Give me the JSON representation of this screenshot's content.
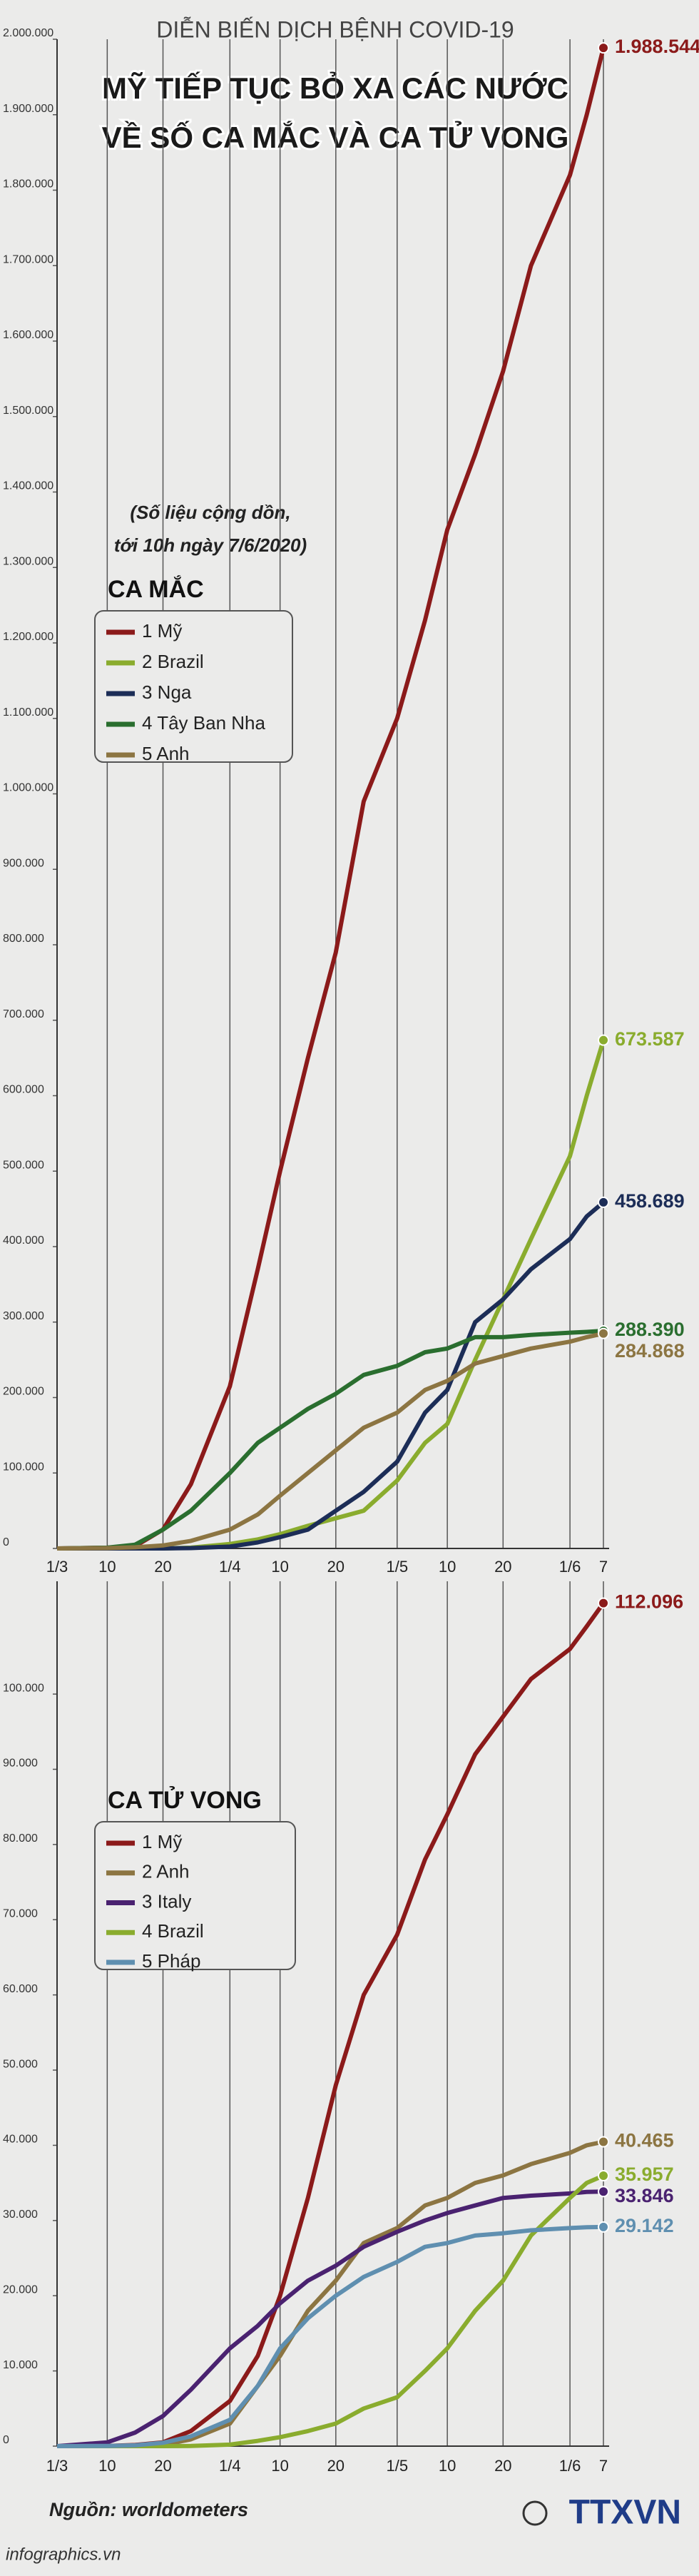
{
  "header": {
    "kicker": "DIỄN BIẾN DỊCH BỆNH COVID-19",
    "title_lines": [
      "MỸ TIẾP TỤC BỎ XA CÁC NƯỚC",
      "VỀ SỐ CA MẮC VÀ CA TỬ VONG"
    ]
  },
  "chart_data": [
    {
      "type": "line",
      "title": "CA MẮC",
      "annotation_lines": [
        "(Số liệu cộng dồn,",
        "tới 10h ngày 7/6/2020)"
      ],
      "x": [
        0,
        9,
        14,
        19,
        24,
        31,
        36,
        40,
        45,
        50,
        55,
        61,
        66,
        70,
        75,
        80,
        85,
        92,
        95,
        98
      ],
      "xlim": [
        0,
        98
      ],
      "xticks": [
        {
          "value": 0,
          "label": "1/3"
        },
        {
          "value": 9,
          "label": "10"
        },
        {
          "value": 19,
          "label": "20"
        },
        {
          "value": 31,
          "label": "1/4"
        },
        {
          "value": 40,
          "label": "10"
        },
        {
          "value": 50,
          "label": "20"
        },
        {
          "value": 61,
          "label": "1/5"
        },
        {
          "value": 70,
          "label": "10"
        },
        {
          "value": 80,
          "label": "20"
        },
        {
          "value": 92,
          "label": "1/6"
        },
        {
          "value": 98,
          "label": "7"
        }
      ],
      "ylim": [
        0,
        2000000
      ],
      "yticks": [
        0,
        {
          "value": 100000,
          "label": "100.000"
        },
        {
          "value": 200000,
          "label": "200.000"
        },
        {
          "value": 300000,
          "label": "300.000"
        },
        {
          "value": 400000,
          "label": "400.000"
        },
        {
          "value": 500000,
          "label": "500.000"
        },
        {
          "value": 600000,
          "label": "600.000"
        },
        {
          "value": 700000,
          "label": "700.000"
        },
        {
          "value": 800000,
          "label": "800.000"
        },
        {
          "value": 900000,
          "label": "900.000"
        },
        {
          "value": 1000000,
          "label": "1.000.000"
        },
        {
          "value": 1100000,
          "label": "1.100.000"
        },
        {
          "value": 1200000,
          "label": "1.200.000"
        },
        {
          "value": 1300000,
          "label": "1.300.000"
        },
        {
          "value": 1400000,
          "label": "1.400.000"
        },
        {
          "value": 1500000,
          "label": "1.500.000"
        },
        {
          "value": 1600000,
          "label": "1.600.000"
        },
        {
          "value": 1700000,
          "label": "1.700.000"
        },
        {
          "value": 1800000,
          "label": "1.800.000"
        },
        {
          "value": 1900000,
          "label": "1.900.000"
        },
        {
          "value": 2000000,
          "label": "2.000.000"
        }
      ],
      "grid": true,
      "series": [
        {
          "name": "1 Mỹ",
          "color": "#8b1a1a",
          "values": [
            0,
            1000,
            3000,
            25000,
            85000,
            215000,
            370000,
            500000,
            650000,
            790000,
            990000,
            1100000,
            1230000,
            1350000,
            1450000,
            1560000,
            1700000,
            1820000,
            1900000,
            1988544
          ],
          "value_labels": [
            null,
            null,
            null,
            null,
            null,
            null,
            null,
            null,
            null,
            null,
            null,
            null,
            null,
            null,
            null,
            null,
            null,
            null,
            null,
            "1.988.544"
          ]
        },
        {
          "name": "2 Brazil",
          "color": "#8aac2e",
          "values": [
            0,
            0,
            0,
            0,
            1000,
            6000,
            12000,
            19000,
            30000,
            40000,
            50000,
            90000,
            140000,
            165000,
            250000,
            330000,
            410000,
            520000,
            600000,
            673587
          ],
          "value_labels": [
            null,
            null,
            null,
            null,
            null,
            null,
            null,
            null,
            null,
            null,
            null,
            null,
            null,
            null,
            null,
            null,
            null,
            null,
            null,
            "673.587"
          ]
        },
        {
          "name": "3 Nga",
          "color": "#1c2d57",
          "values": [
            0,
            0,
            0,
            0,
            500,
            2500,
            8000,
            15000,
            25000,
            50000,
            75000,
            115000,
            180000,
            210000,
            300000,
            330000,
            370000,
            410000,
            440000,
            458689
          ],
          "value_labels": [
            null,
            null,
            null,
            null,
            null,
            null,
            null,
            null,
            null,
            null,
            null,
            null,
            null,
            null,
            null,
            null,
            null,
            null,
            null,
            "458.689"
          ]
        },
        {
          "name": "4 Tây Ban Nha",
          "color": "#2a6e2f",
          "values": [
            0,
            1000,
            5000,
            25000,
            50000,
            100000,
            140000,
            160000,
            185000,
            205000,
            230000,
            242000,
            260000,
            265000,
            280000,
            280000,
            283000,
            286000,
            287000,
            288390
          ],
          "value_labels": [
            null,
            null,
            null,
            null,
            null,
            null,
            null,
            null,
            null,
            null,
            null,
            null,
            null,
            null,
            null,
            null,
            null,
            null,
            null,
            "288.390"
          ]
        },
        {
          "name": "5 Anh",
          "color": "#8c7542",
          "values": [
            0,
            500,
            1500,
            4000,
            10000,
            25000,
            45000,
            70000,
            100000,
            130000,
            160000,
            180000,
            210000,
            222000,
            245000,
            255000,
            265000,
            274000,
            280000,
            284868
          ],
          "value_labels": [
            null,
            null,
            null,
            null,
            null,
            null,
            null,
            null,
            null,
            null,
            null,
            null,
            null,
            null,
            null,
            null,
            null,
            null,
            null,
            "284.868"
          ]
        }
      ]
    },
    {
      "type": "line",
      "title": "CA TỬ VONG",
      "x": [
        0,
        9,
        14,
        19,
        24,
        31,
        36,
        40,
        45,
        50,
        55,
        61,
        66,
        70,
        75,
        80,
        85,
        92,
        95,
        98
      ],
      "xlim": [
        0,
        98
      ],
      "xticks": [
        {
          "value": 0,
          "label": "1/3"
        },
        {
          "value": 9,
          "label": "10"
        },
        {
          "value": 19,
          "label": "20"
        },
        {
          "value": 31,
          "label": "1/4"
        },
        {
          "value": 40,
          "label": "10"
        },
        {
          "value": 50,
          "label": "20"
        },
        {
          "value": 61,
          "label": "1/5"
        },
        {
          "value": 70,
          "label": "10"
        },
        {
          "value": 80,
          "label": "20"
        },
        {
          "value": 92,
          "label": "1/6"
        },
        {
          "value": 98,
          "label": "7"
        }
      ],
      "ylim": [
        0,
        115000
      ],
      "yticks": [
        0,
        {
          "value": 10000,
          "label": "10.000"
        },
        {
          "value": 20000,
          "label": "20.000"
        },
        {
          "value": 30000,
          "label": "30.000"
        },
        {
          "value": 40000,
          "label": "40.000"
        },
        {
          "value": 50000,
          "label": "50.000"
        },
        {
          "value": 60000,
          "label": "60.000"
        },
        {
          "value": 70000,
          "label": "70.000"
        },
        {
          "value": 80000,
          "label": "80.000"
        },
        {
          "value": 90000,
          "label": "90.000"
        },
        {
          "value": 100000,
          "label": "100.000"
        }
      ],
      "grid": true,
      "series": [
        {
          "name": "1 Mỹ",
          "color": "#8b1a1a",
          "values": [
            0,
            20,
            150,
            500,
            2000,
            6000,
            12000,
            20000,
            33000,
            48000,
            60000,
            68000,
            78000,
            84000,
            92000,
            97000,
            102000,
            106000,
            109000,
            112096
          ],
          "value_labels": [
            null,
            null,
            null,
            null,
            null,
            null,
            null,
            null,
            null,
            null,
            null,
            null,
            null,
            null,
            null,
            null,
            null,
            null,
            null,
            "112.096"
          ]
        },
        {
          "name": "2 Anh",
          "color": "#8c7542",
          "values": [
            0,
            0,
            10,
            150,
            900,
            3000,
            8000,
            12000,
            18000,
            22000,
            27000,
            29000,
            32000,
            33000,
            35000,
            36000,
            37500,
            39000,
            40000,
            40465
          ],
          "value_labels": [
            null,
            null,
            null,
            null,
            null,
            null,
            null,
            null,
            null,
            null,
            null,
            null,
            null,
            null,
            null,
            null,
            null,
            null,
            null,
            "40.465"
          ]
        },
        {
          "name": "3 Italy",
          "color": "#4a2270",
          "values": [
            0,
            500,
            1800,
            4000,
            7500,
            13000,
            16000,
            19000,
            22000,
            24000,
            26500,
            28500,
            30000,
            31000,
            32000,
            33000,
            33300,
            33600,
            33800,
            33846
          ],
          "value_labels": [
            null,
            null,
            null,
            null,
            null,
            null,
            null,
            null,
            null,
            null,
            null,
            null,
            null,
            null,
            null,
            null,
            null,
            null,
            null,
            "33.846"
          ]
        },
        {
          "name": "4 Brazil",
          "color": "#8aac2e",
          "values": [
            0,
            0,
            0,
            0,
            20,
            200,
            700,
            1200,
            2000,
            3000,
            5000,
            6500,
            10000,
            13000,
            18000,
            22000,
            28000,
            33000,
            35000,
            35957
          ],
          "value_labels": [
            null,
            null,
            null,
            null,
            null,
            null,
            null,
            null,
            null,
            null,
            null,
            null,
            null,
            null,
            null,
            null,
            null,
            null,
            null,
            "35.957"
          ]
        },
        {
          "name": "5 Pháp",
          "color": "#5f8fb0",
          "values": [
            0,
            30,
            100,
            450,
            1300,
            3500,
            8000,
            13000,
            17000,
            20000,
            22500,
            24500,
            26500,
            27000,
            28000,
            28300,
            28700,
            29000,
            29100,
            29142
          ],
          "value_labels": [
            null,
            null,
            null,
            null,
            null,
            null,
            null,
            null,
            null,
            null,
            null,
            null,
            null,
            null,
            null,
            null,
            null,
            null,
            null,
            "29.142"
          ]
        }
      ]
    }
  ],
  "footer": {
    "source": "Nguồn: worldometers",
    "site": "infographics.vn",
    "agency": "TTXVN"
  }
}
